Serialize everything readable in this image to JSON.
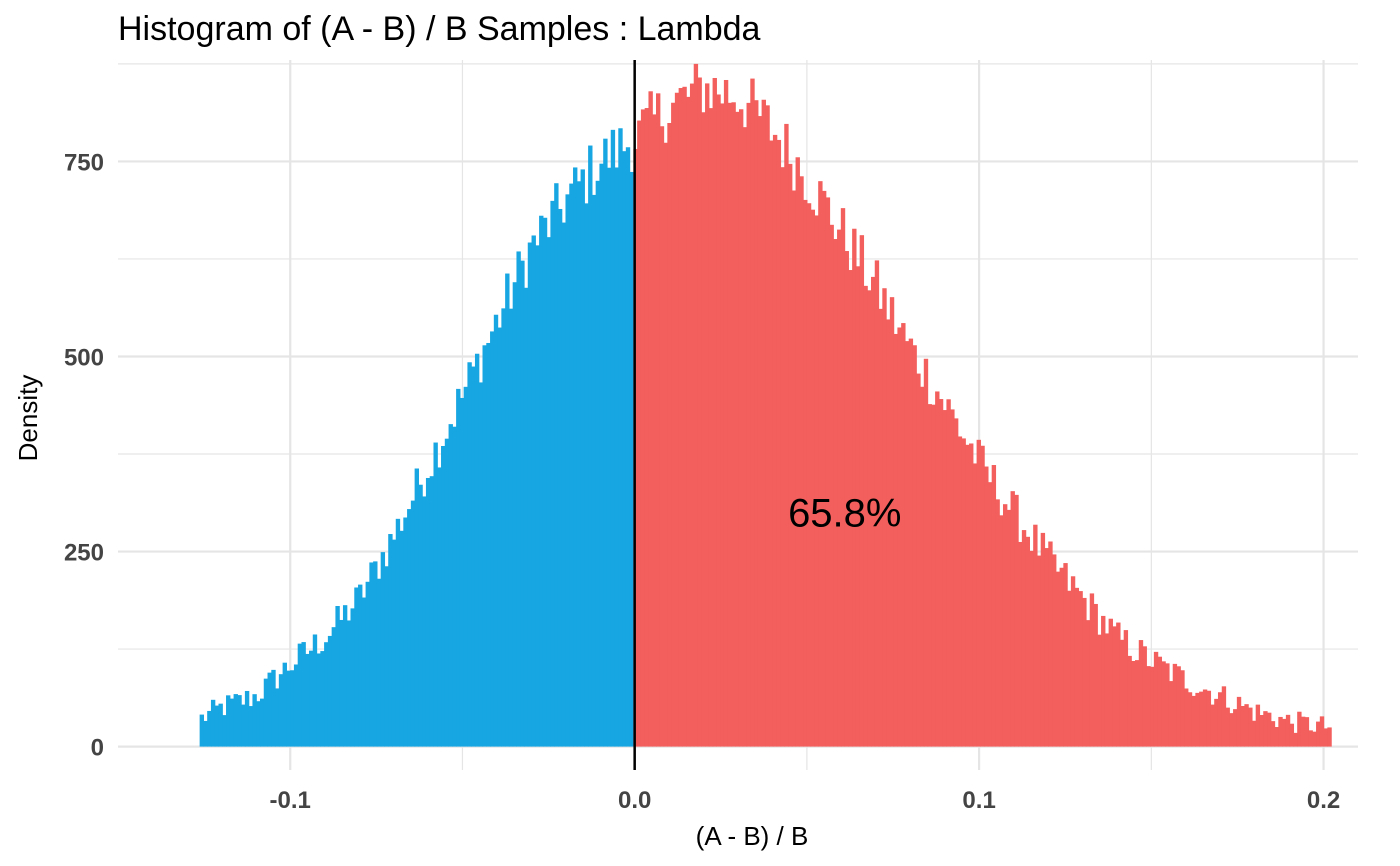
{
  "title": "Histogram of (A - B) / B Samples : Lambda",
  "chart_data": {
    "type": "bar",
    "title": "Histogram of (A - B) / B Samples : Lambda",
    "xlabel": "(A - B) / B",
    "ylabel": "Density",
    "xlim": [
      -0.15,
      0.21
    ],
    "ylim": [
      -30,
      880
    ],
    "x_ticks": [
      -0.1,
      0.0,
      0.1,
      0.2
    ],
    "x_tick_labels": [
      "-0.1",
      "0.0",
      "0.1",
      "0.2"
    ],
    "y_ticks": [
      0,
      250,
      500,
      750
    ],
    "y_tick_labels": [
      "0",
      "250",
      "500",
      "750"
    ],
    "grid": true,
    "bin_range": [
      -0.1263,
      0.2022
    ],
    "bin_count": 300,
    "threshold": 0.0,
    "annotation": {
      "text": "65.8%",
      "x": 0.061,
      "y": 300
    },
    "colors": {
      "negative": "#17A6E2",
      "positive": "#F25F5C",
      "threshold_line": "#000000",
      "grid": "#E5E5E5"
    },
    "profile_x": [
      -0.1263,
      -0.12,
      -0.11,
      -0.1,
      -0.09,
      -0.08,
      -0.07,
      -0.06,
      -0.05,
      -0.04,
      -0.03,
      -0.02,
      -0.01,
      0.0,
      0.01,
      0.02,
      0.03,
      0.04,
      0.05,
      0.06,
      0.07,
      0.08,
      0.09,
      0.1,
      0.11,
      0.12,
      0.13,
      0.14,
      0.15,
      0.16,
      0.17,
      0.18,
      0.19,
      0.2022
    ],
    "profile_y": [
      35,
      50,
      65,
      105,
      140,
      190,
      270,
      360,
      450,
      545,
      640,
      700,
      750,
      780,
      820,
      845,
      835,
      790,
      730,
      660,
      590,
      510,
      440,
      365,
      300,
      240,
      190,
      140,
      110,
      85,
      65,
      45,
      32,
      25
    ]
  }
}
